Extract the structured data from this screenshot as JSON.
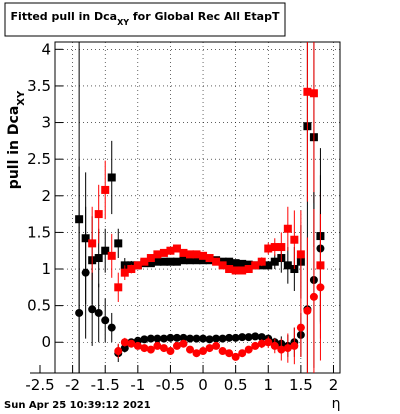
{
  "chart_data": {
    "type": "scatter",
    "title": {
      "text": "Fitted pull in Dca",
      "sub": "XY",
      "rest": " for Global Rec All EtapT"
    },
    "y_label": {
      "text": "pull in Dca",
      "sub": "XY"
    },
    "x_label": "η",
    "footer": "Sun Apr 25 10:39:12 2021",
    "xlim": [
      -2.27,
      2.1
    ],
    "ylim": [
      -0.42,
      4.1
    ],
    "xticks": [
      -2.5,
      -2,
      -1.5,
      -1,
      -0.5,
      0,
      0.5,
      1,
      1.5,
      2
    ],
    "yticks": [
      0,
      0.5,
      1,
      1.5,
      2,
      2.5,
      3,
      3.5,
      4
    ],
    "grid": true,
    "x": [
      -1.9,
      -1.8,
      -1.7,
      -1.6,
      -1.5,
      -1.4,
      -1.3,
      -1.2,
      -1.1,
      -1.0,
      -0.9,
      -0.8,
      -0.7,
      -0.6,
      -0.5,
      -0.4,
      -0.3,
      -0.2,
      -0.1,
      0,
      0.1,
      0.2,
      0.3,
      0.4,
      0.5,
      0.6,
      0.7,
      0.8,
      0.9,
      1.0,
      1.1,
      1.2,
      1.3,
      1.4,
      1.5,
      1.6,
      1.7,
      1.8
    ],
    "series": [
      {
        "name": "black-squares",
        "marker": "square",
        "color": "#000000",
        "values": [
          1.68,
          1.42,
          1.12,
          1.15,
          1.25,
          2.25,
          1.35,
          1.05,
          1.05,
          1.05,
          1.08,
          1.08,
          1.1,
          1.1,
          1.1,
          1.1,
          1.12,
          1.12,
          1.12,
          1.12,
          1.12,
          1.12,
          1.1,
          1.1,
          1.08,
          1.07,
          1.06,
          1.05,
          1.05,
          1.05,
          1.1,
          1.15,
          1.05,
          1.0,
          1.1,
          2.95,
          2.8,
          1.45
        ],
        "errors": [
          2.5,
          0.9,
          0.6,
          0.4,
          0.3,
          0.5,
          0.2,
          0.1,
          0.06,
          0.05,
          0.04,
          0.04,
          0.03,
          0.03,
          0.03,
          0.03,
          0.03,
          0.03,
          0.03,
          0.03,
          0.03,
          0.03,
          0.03,
          0.03,
          0.03,
          0.04,
          0.04,
          0.04,
          0.05,
          0.06,
          0.1,
          0.2,
          0.25,
          0.3,
          0.5,
          1.5,
          1.5,
          1.2
        ]
      },
      {
        "name": "red-squares",
        "marker": "square",
        "color": "#ff0000",
        "values": [
          null,
          null,
          1.35,
          1.75,
          2.08,
          1.18,
          0.75,
          0.95,
          1.0,
          1.05,
          1.1,
          1.15,
          1.2,
          1.22,
          1.25,
          1.28,
          1.22,
          1.2,
          1.2,
          1.18,
          1.15,
          1.1,
          1.05,
          1.0,
          0.98,
          0.98,
          1.0,
          1.05,
          1.1,
          1.28,
          1.3,
          1.3,
          1.55,
          1.4,
          1.2,
          3.42,
          3.4,
          1.05
        ],
        "errors": [
          null,
          null,
          0.5,
          0.4,
          0.4,
          0.3,
          0.2,
          0.1,
          0.06,
          0.05,
          0.04,
          0.04,
          0.04,
          0.04,
          0.04,
          0.04,
          0.04,
          0.04,
          0.04,
          0.04,
          0.04,
          0.04,
          0.04,
          0.04,
          0.04,
          0.04,
          0.04,
          0.05,
          0.06,
          0.08,
          0.12,
          0.2,
          0.3,
          0.4,
          0.6,
          1.5,
          1.5,
          1.0
        ]
      },
      {
        "name": "black-circles",
        "marker": "circle",
        "color": "#000000",
        "values": [
          0.4,
          0.95,
          0.45,
          0.4,
          0.3,
          0.2,
          -0.15,
          -0.08,
          0.0,
          0.02,
          0.04,
          0.05,
          0.05,
          0.05,
          0.06,
          0.06,
          0.06,
          0.05,
          0.05,
          0.05,
          0.04,
          0.05,
          0.05,
          0.06,
          0.06,
          0.07,
          0.07,
          0.08,
          0.07,
          0.05,
          0.0,
          -0.02,
          -0.05,
          0.0,
          0.1,
          0.45,
          0.85,
          1.28
        ],
        "errors": [
          2.0,
          0.9,
          0.5,
          0.4,
          0.3,
          0.2,
          0.12,
          0.06,
          0.04,
          0.03,
          0.03,
          0.03,
          0.03,
          0.03,
          0.03,
          0.03,
          0.03,
          0.03,
          0.03,
          0.03,
          0.03,
          0.03,
          0.03,
          0.03,
          0.03,
          0.03,
          0.03,
          0.03,
          0.04,
          0.04,
          0.06,
          0.1,
          0.15,
          0.2,
          0.3,
          1.0,
          1.2,
          1.0
        ]
      },
      {
        "name": "red-circles",
        "marker": "circle",
        "color": "#ff0000",
        "values": [
          null,
          null,
          null,
          null,
          null,
          null,
          -0.12,
          0.0,
          -0.02,
          -0.05,
          -0.08,
          -0.1,
          -0.05,
          -0.08,
          -0.12,
          -0.05,
          -0.02,
          -0.1,
          -0.15,
          -0.12,
          -0.08,
          -0.05,
          -0.12,
          -0.15,
          -0.2,
          -0.15,
          -0.1,
          -0.05,
          -0.02,
          0.0,
          -0.05,
          -0.1,
          -0.08,
          -0.05,
          0.2,
          0.43,
          0.62,
          0.75
        ],
        "errors": [
          null,
          null,
          null,
          null,
          null,
          null,
          0.1,
          0.06,
          0.04,
          0.04,
          0.04,
          0.04,
          0.04,
          0.04,
          0.04,
          0.04,
          0.04,
          0.04,
          0.04,
          0.04,
          0.04,
          0.04,
          0.04,
          0.04,
          0.04,
          0.04,
          0.04,
          0.05,
          0.06,
          0.08,
          0.1,
          0.15,
          0.2,
          0.25,
          0.4,
          1.0,
          1.2,
          1.0
        ]
      }
    ]
  }
}
